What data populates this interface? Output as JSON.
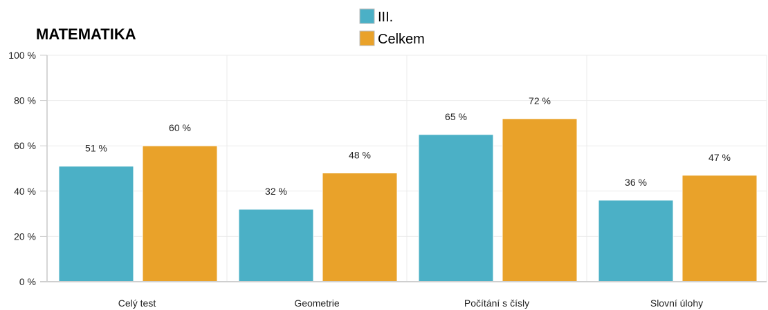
{
  "chart_data": {
    "type": "bar",
    "title": "MATEMATIKA",
    "categories": [
      "Celý test",
      "Geometrie",
      "Počítání s čísly",
      "Slovní úlohy"
    ],
    "series": [
      {
        "name": "III.",
        "color": "#4bb0c6",
        "values": [
          51,
          32,
          65,
          36
        ],
        "labels": [
          "51 %",
          "32 %",
          "65 %",
          "36 %"
        ]
      },
      {
        "name": "Celkem",
        "color": "#e9a22a",
        "values": [
          60,
          48,
          72,
          47
        ],
        "labels": [
          "60 %",
          "48 %",
          "72 %",
          "47 %"
        ]
      }
    ],
    "ylim": [
      0,
      100
    ],
    "yticks": [
      0,
      20,
      40,
      60,
      80,
      100
    ],
    "ytick_labels": [
      "0 %",
      "20 %",
      "40 %",
      "60 %",
      "80 %",
      "100 %"
    ],
    "xlabel": "",
    "ylabel": "",
    "grid": true,
    "legend_position": "top-center"
  }
}
